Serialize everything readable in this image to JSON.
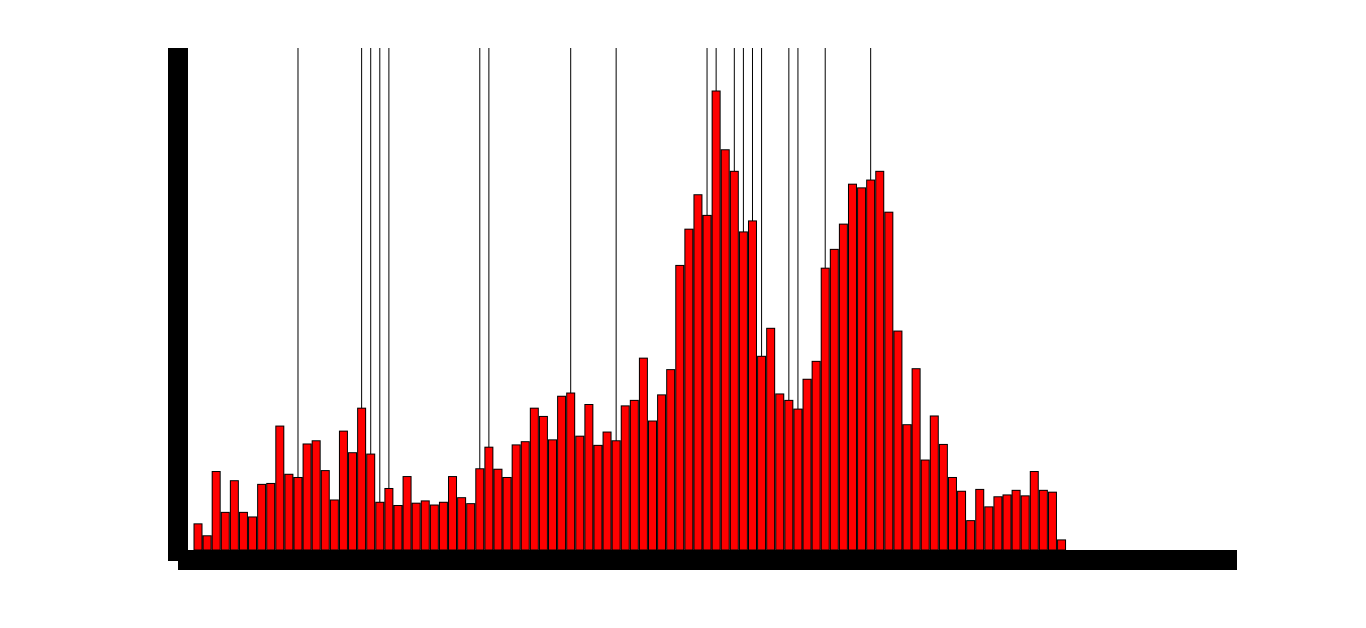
{
  "chart_data": {
    "type": "bar",
    "title": "",
    "xlabel": "",
    "ylabel": "",
    "grid": false,
    "ylim": [
      0,
      100
    ],
    "bar_color": "#ff0000",
    "axis_color": "#000000",
    "marker_color": "#000000",
    "values": [
      5.7,
      3.1,
      17.1,
      8.2,
      15.1,
      8.2,
      7.2,
      14.3,
      14.5,
      27.0,
      16.5,
      15.8,
      23.1,
      23.8,
      17.3,
      10.9,
      25.9,
      21.2,
      30.9,
      20.9,
      10.4,
      13.4,
      9.7,
      16.0,
      10.2,
      10.7,
      9.8,
      10.4,
      16.0,
      11.4,
      10.1,
      17.7,
      22.4,
      17.6,
      15.8,
      22.9,
      23.6,
      30.9,
      29.1,
      24.0,
      33.5,
      34.2,
      24.8,
      31.7,
      22.8,
      25.7,
      23.8,
      31.4,
      32.6,
      41.8,
      28.1,
      33.8,
      39.3,
      62.0,
      69.9,
      77.4,
      72.9,
      100.0,
      87.2,
      82.5,
      69.3,
      71.7,
      42.2,
      48.3,
      34.0,
      32.6,
      30.7,
      37.2,
      41.1,
      61.4,
      65.5,
      71.0,
      79.7,
      78.9,
      80.6,
      82.5,
      73.6,
      47.7,
      27.3,
      39.5,
      19.6,
      29.2,
      23.0,
      15.8,
      12.8,
      6.4,
      13.2,
      9.4,
      11.6,
      12.0,
      13.0,
      11.8,
      17.1,
      13.0,
      12.6,
      2.2
    ],
    "markers": [
      11,
      18,
      19,
      20,
      21,
      31,
      32,
      41,
      46,
      56,
      57,
      59,
      60,
      61,
      62,
      65,
      66,
      69,
      74
    ]
  }
}
